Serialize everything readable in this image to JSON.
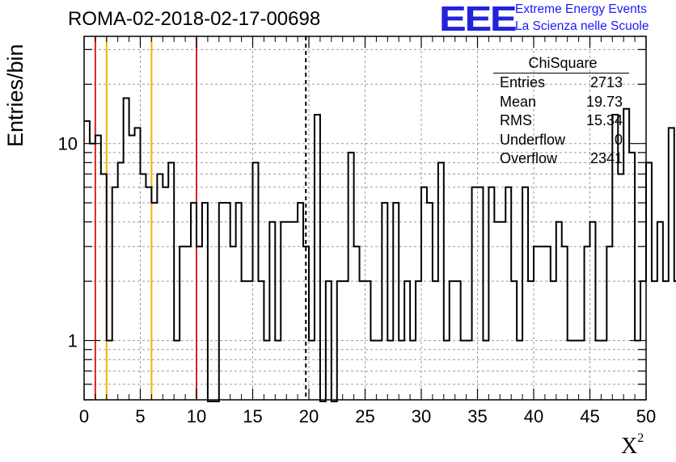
{
  "header": {
    "title": "ROMA-02-2018-02-17-00698",
    "logo_text": "EEE",
    "logo_line1": "Extreme Energy Events",
    "logo_line2": "La Scienza nelle Scuole"
  },
  "stats_box": {
    "title": "ChiSquare",
    "rows": [
      {
        "name": "Entries",
        "value": "2713"
      },
      {
        "name": "Mean",
        "value": "19.73"
      },
      {
        "name": "RMS",
        "value": "15.34"
      },
      {
        "name": "Underflow",
        "value": "0"
      },
      {
        "name": "Overflow",
        "value": "2341"
      }
    ]
  },
  "chart_data": {
    "type": "histogram",
    "ylabel": "Entries/bin",
    "xlabel": "X",
    "xlabel_sup": "2",
    "xlim": [
      0,
      50
    ],
    "ylim": [
      0.5,
      35
    ],
    "yscale": "log",
    "bin_width": 0.5,
    "grid": true,
    "xticks": [
      0,
      5,
      10,
      15,
      20,
      25,
      30,
      35,
      40,
      45,
      50
    ],
    "xtick_labels": [
      "0",
      "5",
      "10",
      "15",
      "20",
      "25",
      "30",
      "35",
      "40",
      "45",
      "50"
    ],
    "yticks": [
      1,
      10
    ],
    "ytick_labels": [
      "1",
      "10"
    ],
    "counts": [
      13,
      10,
      11,
      7,
      1,
      6,
      8,
      17,
      11,
      12,
      7,
      6,
      5,
      7,
      6,
      8,
      1,
      3,
      3,
      5,
      3,
      5,
      0,
      0,
      5,
      5,
      3,
      5,
      2,
      2,
      8,
      2,
      1,
      4,
      1,
      4,
      4,
      4,
      5,
      3,
      1,
      14,
      0,
      2,
      0,
      2,
      2,
      9,
      3,
      2,
      2,
      1,
      1,
      5,
      1,
      5,
      1,
      2,
      1,
      2,
      6,
      5,
      2,
      8,
      1,
      2,
      2,
      1,
      1,
      6,
      6,
      1,
      6,
      4,
      4,
      6,
      2,
      1,
      6,
      2,
      3,
      3,
      3,
      2,
      4,
      3,
      1,
      1,
      1,
      3,
      4,
      1,
      1,
      3,
      14,
      7,
      15,
      9,
      1,
      2,
      8,
      2,
      4,
      2,
      12,
      2,
      5,
      1,
      4,
      2,
      0,
      2,
      2,
      13,
      11,
      6,
      4,
      1,
      4,
      4,
      2,
      8,
      2,
      0,
      8,
      9,
      1,
      3,
      9,
      12,
      5,
      5,
      3,
      14,
      1,
      5,
      3,
      1,
      1,
      4,
      4,
      3,
      4,
      6,
      6,
      6,
      6,
      8,
      8,
      1,
      3,
      3,
      3,
      1,
      6,
      6,
      1,
      1,
      7,
      4,
      7,
      0,
      1,
      5,
      2,
      4,
      1,
      3,
      3,
      3,
      1,
      0,
      6,
      5,
      1,
      1,
      1,
      8,
      9,
      16,
      2,
      14,
      14,
      3,
      7,
      1,
      2,
      2,
      2,
      9,
      8,
      7,
      3,
      3,
      2,
      5,
      0,
      0,
      0,
      1,
      3,
      1,
      6,
      2
    ],
    "vertical_lines": [
      {
        "x": 1,
        "color": "#dd2222",
        "style": "solid"
      },
      {
        "x": 2,
        "color": "#f0b400",
        "style": "solid"
      },
      {
        "x": 6,
        "color": "#f0b400",
        "style": "solid"
      },
      {
        "x": 10,
        "color": "#dd2222",
        "style": "solid"
      },
      {
        "x": 19.73,
        "color": "#000000",
        "style": "dashed"
      }
    ]
  }
}
